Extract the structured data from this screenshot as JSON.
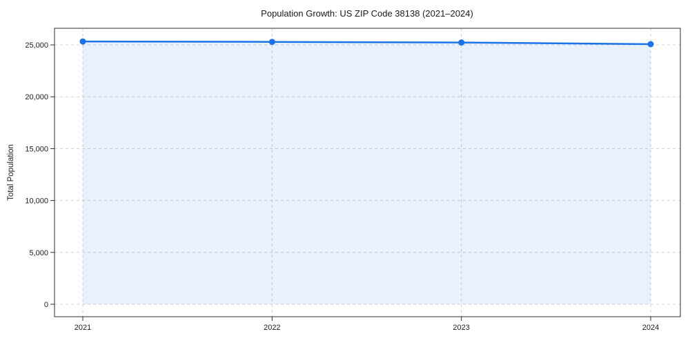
{
  "chart_data": {
    "type": "area",
    "title": "Population Growth: US ZIP Code 38138 (2021–2024)",
    "xlabel": "",
    "ylabel": "Total Population",
    "categories": [
      "2021",
      "2022",
      "2023",
      "2024"
    ],
    "series": [
      {
        "name": "Total Population",
        "values": [
          25330,
          25290,
          25230,
          25070
        ]
      }
    ],
    "yticks": [
      0,
      5000,
      10000,
      15000,
      20000,
      25000
    ],
    "ylim": [
      -1200,
      26600
    ],
    "grid": "dashed-both-axes",
    "legend": "none",
    "baseline_fill_to": 0,
    "colors": {
      "line": "#1a73e8",
      "marker": "#1a73e8",
      "fill": "rgba(26,115,232,0.10)",
      "gridline": "#cccccc",
      "spine": "#2b2b2b",
      "text": "#1a1a1a",
      "background": "#ffffff"
    }
  }
}
